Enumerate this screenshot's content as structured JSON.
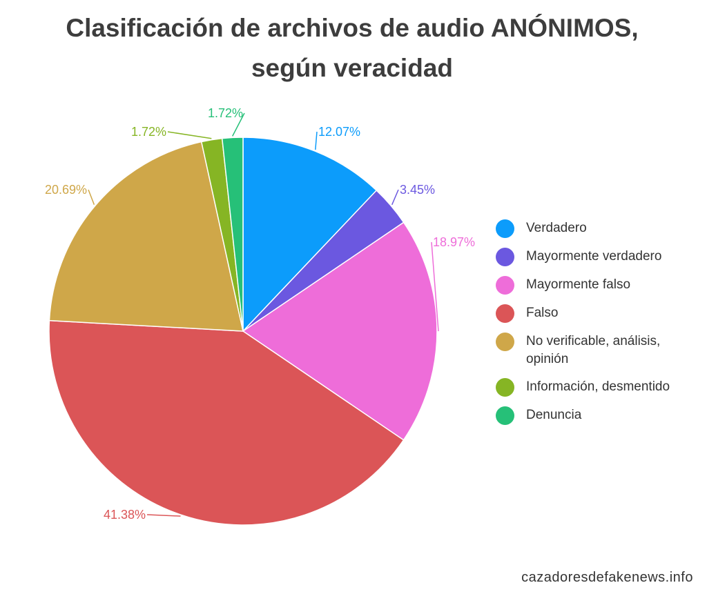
{
  "title_line1": "Clasificación de archivos de audio ANÓNIMOS,",
  "title_line2": "según veracidad",
  "source": "cazadoresdefakenews.info",
  "chart_data": {
    "type": "pie",
    "title": "Clasificación de archivos de audio ANÓNIMOS, según veracidad",
    "legend_position": "right",
    "slices": [
      {
        "label": "Verdadero",
        "value": 12.07,
        "display": "12.07%",
        "color": "#0c9cfb"
      },
      {
        "label": "Mayormente verdadero",
        "value": 3.45,
        "display": "3.45%",
        "color": "#6b58e0"
      },
      {
        "label": "Mayormente falso",
        "value": 18.97,
        "display": "18.97%",
        "color": "#ee6dd9"
      },
      {
        "label": "Falso",
        "value": 41.38,
        "display": "41.38%",
        "color": "#db5557"
      },
      {
        "label": "No verificable, análisis, opinión",
        "value": 20.69,
        "display": "20.69%",
        "color": "#cfa749"
      },
      {
        "label": "Información, desmentido",
        "value": 1.72,
        "display": "1.72%",
        "color": "#86b524"
      },
      {
        "label": "Denuncia",
        "value": 1.72,
        "display": "1.72%",
        "color": "#26c078"
      }
    ]
  }
}
